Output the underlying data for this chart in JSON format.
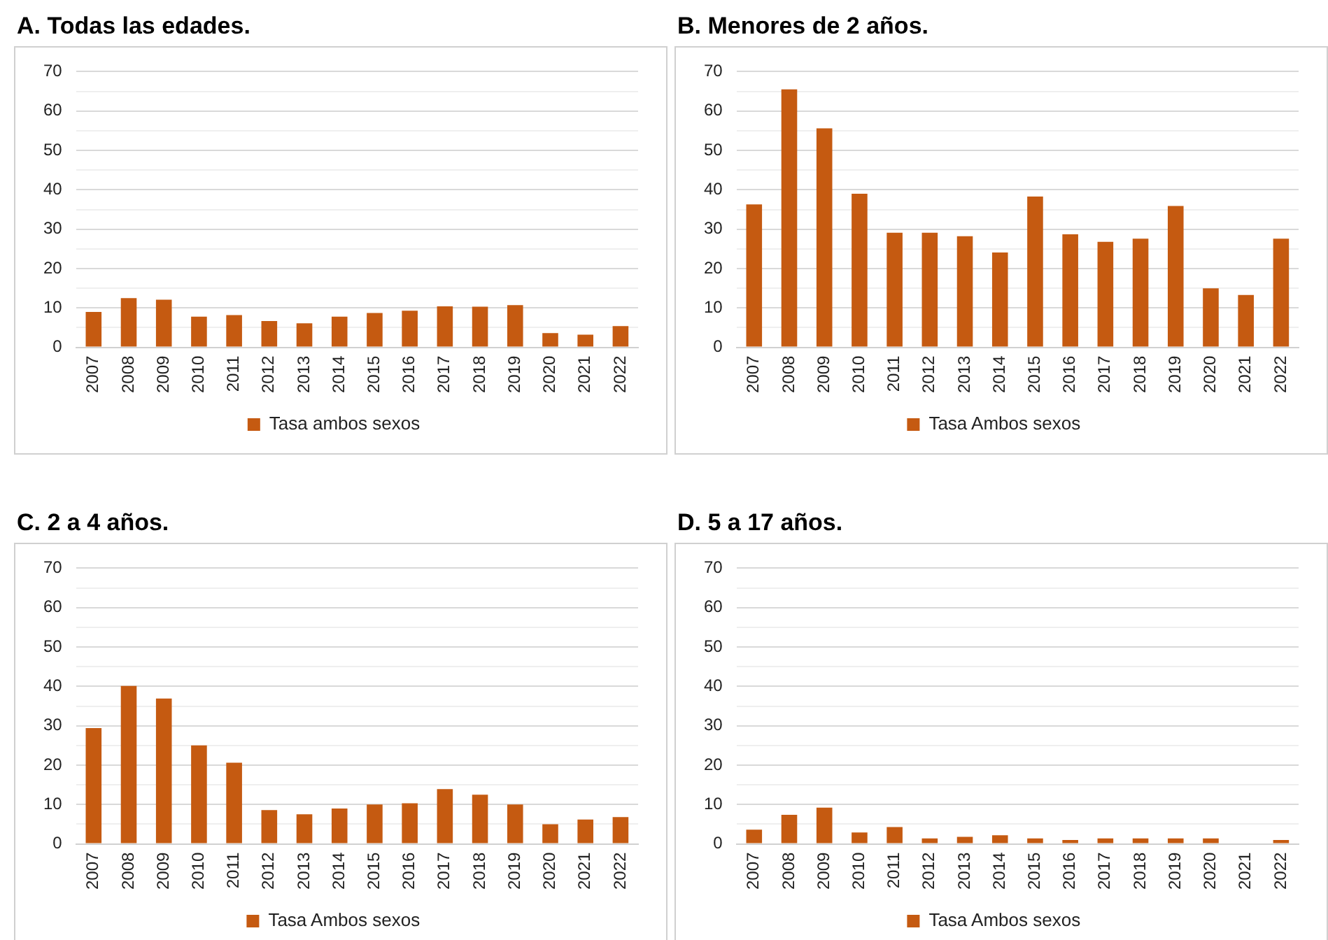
{
  "chart_data": [
    {
      "type": "bar",
      "title": "A.  Todas las edades.",
      "categories": [
        "2007",
        "2008",
        "2009",
        "2010",
        "2011",
        "2012",
        "2013",
        "2014",
        "2015",
        "2016",
        "2017",
        "2018",
        "2019",
        "2020",
        "2021",
        "2022"
      ],
      "series": [
        {
          "name": "Tasa ambos sexos",
          "color": "#c55a11",
          "values": [
            9.0,
            12.5,
            12.1,
            7.8,
            8.2,
            6.7,
            6.1,
            7.8,
            8.7,
            9.3,
            10.4,
            10.3,
            10.7,
            3.6,
            3.2,
            5.4
          ]
        }
      ],
      "ylim": [
        0,
        70
      ],
      "yticks": [
        0,
        {
          "value": 5,
          "label": null
        },
        10,
        {
          "value": 15,
          "label": null
        },
        20,
        {
          "value": 25,
          "label": null
        },
        30,
        {
          "value": 35,
          "label": null
        },
        40,
        {
          "value": 45,
          "label": null
        },
        50,
        {
          "value": 55,
          "label": null
        },
        60,
        {
          "value": 65,
          "label": null
        },
        70
      ],
      "grid": "y",
      "legend": "bottom"
    },
    {
      "type": "bar",
      "title": "B. Menores de 2 años.",
      "categories": [
        "2007",
        "2008",
        "2009",
        "2010",
        "2011",
        "2012",
        "2013",
        "2014",
        "2015",
        "2016",
        "2017",
        "2018",
        "2019",
        "2020",
        "2021",
        "2022"
      ],
      "series": [
        {
          "name": "Tasa Ambos sexos",
          "color": "#c55a11",
          "values": [
            36.3,
            65.5,
            55.6,
            39.0,
            29.1,
            29.1,
            28.2,
            24.1,
            38.3,
            28.7,
            26.8,
            27.6,
            35.9,
            15.0,
            13.3,
            27.6
          ]
        }
      ],
      "ylim": [
        0,
        70
      ],
      "yticks": [
        0,
        {
          "value": 5,
          "label": null
        },
        10,
        {
          "value": 15,
          "label": null
        },
        20,
        {
          "value": 25,
          "label": null
        },
        30,
        {
          "value": 35,
          "label": null
        },
        40,
        {
          "value": 45,
          "label": null
        },
        50,
        {
          "value": 55,
          "label": null
        },
        60,
        {
          "value": 65,
          "label": null
        },
        70
      ],
      "grid": "y",
      "legend": "bottom"
    },
    {
      "type": "bar",
      "title": "C.  2 a 4 años.",
      "categories": [
        "2007",
        "2008",
        "2009",
        "2010",
        "2011",
        "2012",
        "2013",
        "2014",
        "2015",
        "2016",
        "2017",
        "2018",
        "2019",
        "2020",
        "2021",
        "2022"
      ],
      "series": [
        {
          "name": "Tasa Ambos sexos",
          "color": "#c55a11",
          "values": [
            29.4,
            40.1,
            36.9,
            25.0,
            20.6,
            8.6,
            7.5,
            9.0,
            10.0,
            10.3,
            13.9,
            12.5,
            10.0,
            5.0,
            6.2,
            6.8
          ]
        }
      ],
      "ylim": [
        0,
        70
      ],
      "yticks": [
        0,
        {
          "value": 5,
          "label": null
        },
        10,
        {
          "value": 15,
          "label": null
        },
        20,
        {
          "value": 25,
          "label": null
        },
        30,
        {
          "value": 35,
          "label": null
        },
        40,
        {
          "value": 45,
          "label": null
        },
        50,
        {
          "value": 55,
          "label": null
        },
        60,
        {
          "value": 65,
          "label": null
        },
        70
      ],
      "grid": "y",
      "legend": "bottom"
    },
    {
      "type": "bar",
      "title": "D. 5 a 17 años.",
      "categories": [
        "2007",
        "2008",
        "2009",
        "2010",
        "2011",
        "2012",
        "2013",
        "2014",
        "2015",
        "2016",
        "2017",
        "2018",
        "2019",
        "2020",
        "2021",
        "2022"
      ],
      "series": [
        {
          "name": "Tasa Ambos sexos",
          "color": "#c55a11",
          "values": [
            3.6,
            7.4,
            9.2,
            2.9,
            4.3,
            1.4,
            1.8,
            2.2,
            1.4,
            1.0,
            1.4,
            1.4,
            1.4,
            1.4,
            0,
            1.0
          ]
        }
      ],
      "ylim": [
        0,
        70
      ],
      "yticks": [
        0,
        {
          "value": 5,
          "label": null
        },
        10,
        {
          "value": 15,
          "label": null
        },
        20,
        {
          "value": 25,
          "label": null
        },
        30,
        {
          "value": 35,
          "label": null
        },
        40,
        {
          "value": 45,
          "label": null
        },
        50,
        {
          "value": 55,
          "label": null
        },
        60,
        {
          "value": 65,
          "label": null
        },
        70
      ],
      "grid": "y",
      "legend": "bottom"
    }
  ]
}
